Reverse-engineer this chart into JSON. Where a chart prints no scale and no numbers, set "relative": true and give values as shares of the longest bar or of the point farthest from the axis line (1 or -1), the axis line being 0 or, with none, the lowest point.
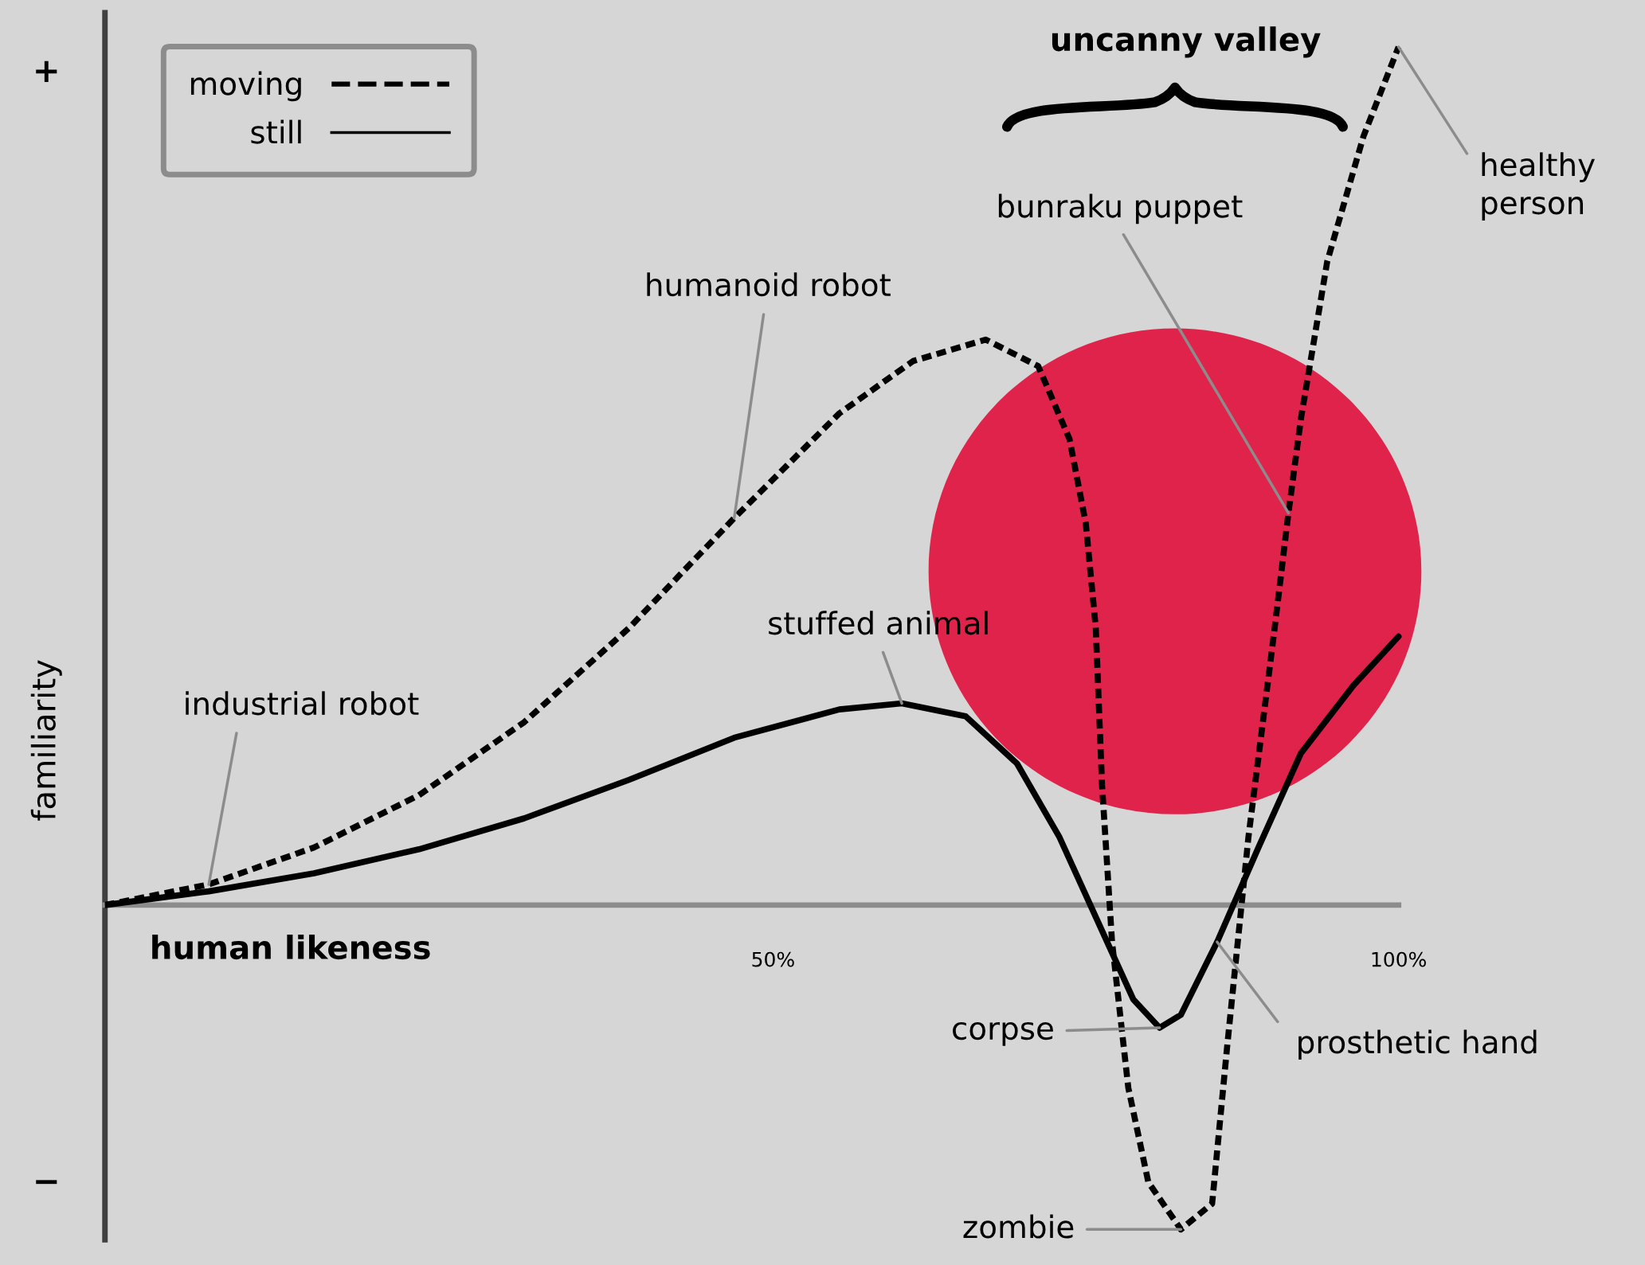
{
  "chart_data": {
    "type": "line",
    "relative": true,
    "xlabel": "human likeness",
    "ylabel": "familiarity",
    "xlim": [
      -3.4,
      119.7
    ],
    "xticks": [
      {
        "value": 50,
        "label": "50%"
      },
      {
        "value": 100,
        "label": "100%"
      }
    ],
    "legend": "top left",
    "grid": false,
    "marker": "none",
    "series": [
      {
        "name": "moving",
        "color": "#000000",
        "line_style": "dashed",
        "x": [
          -3.4,
          4.9,
          13.3,
          21.7,
          30.1,
          38.5,
          46.9,
          55.3,
          61.2,
          67.0,
          71.2,
          73.7,
          75.0,
          75.8,
          76.3,
          77.1,
          78.4,
          80.0,
          82.6,
          85.1,
          86.3,
          88.0,
          90.1,
          91.2,
          92.2,
          94.3,
          97.2,
          100.0
        ],
        "values": [
          0.0,
          0.024,
          0.067,
          0.128,
          0.213,
          0.323,
          0.451,
          0.573,
          0.634,
          0.659,
          0.628,
          0.543,
          0.445,
          0.323,
          0.14,
          -0.043,
          -0.213,
          -0.323,
          -0.378,
          -0.348,
          -0.165,
          0.079,
          0.323,
          0.457,
          0.567,
          0.75,
          0.896,
          1.0
        ]
      },
      {
        "name": "still",
        "color": "#000000",
        "line_style": "solid",
        "x": [
          -3.4,
          4.9,
          13.3,
          21.7,
          30.1,
          38.5,
          46.9,
          55.3,
          60.3,
          65.4,
          69.5,
          72.9,
          76.3,
          78.8,
          80.9,
          82.6,
          85.5,
          88.8,
          92.2,
          96.4,
          100.0
        ],
        "values": [
          0.0,
          0.016,
          0.037,
          0.065,
          0.101,
          0.146,
          0.195,
          0.228,
          0.235,
          0.22,
          0.165,
          0.079,
          -0.03,
          -0.11,
          -0.143,
          -0.128,
          -0.043,
          0.067,
          0.177,
          0.256,
          0.313
        ]
      }
    ],
    "annotations": [
      "+",
      "−",
      "uncanny valley",
      {
        "text": "industrial robot",
        "x": 4.9,
        "y": 0.024
      },
      {
        "text": "humanoid robot",
        "x": 46.9,
        "y": 0.451
      },
      {
        "text": "stuffed animal",
        "x": 60.3,
        "y": 0.235
      },
      {
        "text": "bunraku puppet",
        "x": 91.2,
        "y": 0.457
      },
      {
        "text": "healthy\nperson",
        "x": 100.0,
        "y": 1.0
      },
      {
        "text": "corpse",
        "x": 80.9,
        "y": -0.143
      },
      {
        "text": "prosthetic hand",
        "x": 85.5,
        "y": -0.043
      },
      {
        "text": "zombie",
        "x": 82.6,
        "y": -0.378
      }
    ]
  }
}
